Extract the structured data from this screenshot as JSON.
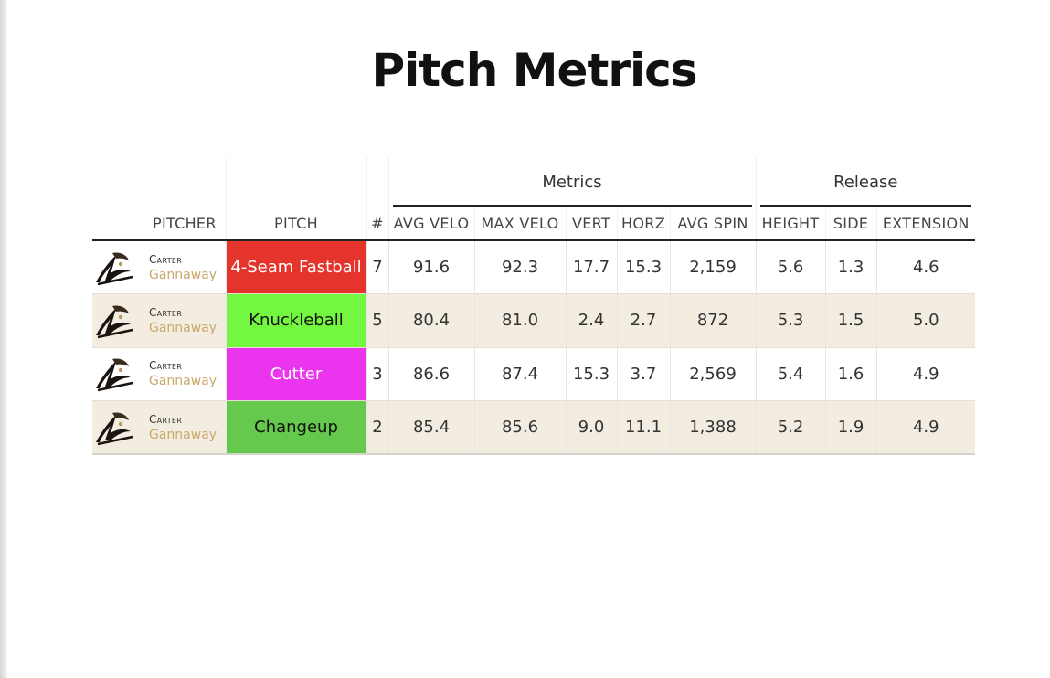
{
  "title": "Pitch Metrics",
  "groups": {
    "metrics": "Metrics",
    "release": "Release"
  },
  "columns": {
    "pitcher": "PITCHER",
    "pitch": "PITCH",
    "count": "#",
    "avg_velo": "AVG VELO",
    "max_velo": "MAX VELO",
    "vert": "VERT",
    "horz": "HORZ",
    "avg_spin": "AVG SPIN",
    "height": "HEIGHT",
    "side": "SIDE",
    "extension": "EXTENSION"
  },
  "rows": [
    {
      "first": "Carter",
      "last": "Gannaway",
      "pitch": "4-Seam Fastball",
      "pitch_bg": "#e5342b",
      "pitch_fg": "#ffffff",
      "count": "7",
      "avg_velo": "91.6",
      "max_velo": "92.3",
      "vert": "17.7",
      "horz": "15.3",
      "avg_spin": "2,159",
      "height": "5.6",
      "side": "1.3",
      "extension": "4.6"
    },
    {
      "first": "Carter",
      "last": "Gannaway",
      "pitch": "Knuckleball",
      "pitch_bg": "#74f740",
      "pitch_fg": "#111111",
      "count": "5",
      "avg_velo": "80.4",
      "max_velo": "81.0",
      "vert": "2.4",
      "horz": "2.7",
      "avg_spin": "872",
      "height": "5.3",
      "side": "1.5",
      "extension": "5.0"
    },
    {
      "first": "Carter",
      "last": "Gannaway",
      "pitch": "Cutter",
      "pitch_bg": "#eb34ed",
      "pitch_fg": "#ffffff",
      "count": "3",
      "avg_velo": "86.6",
      "max_velo": "87.4",
      "vert": "15.3",
      "horz": "3.7",
      "avg_spin": "2,569",
      "height": "5.4",
      "side": "1.6",
      "extension": "4.9"
    },
    {
      "first": "Carter",
      "last": "Gannaway",
      "pitch": "Changeup",
      "pitch_bg": "#64c94c",
      "pitch_fg": "#111111",
      "count": "2",
      "avg_velo": "85.4",
      "max_velo": "85.6",
      "vert": "9.0",
      "horz": "11.1",
      "avg_spin": "1,388",
      "height": "5.2",
      "side": "1.9",
      "extension": "4.9"
    }
  ]
}
